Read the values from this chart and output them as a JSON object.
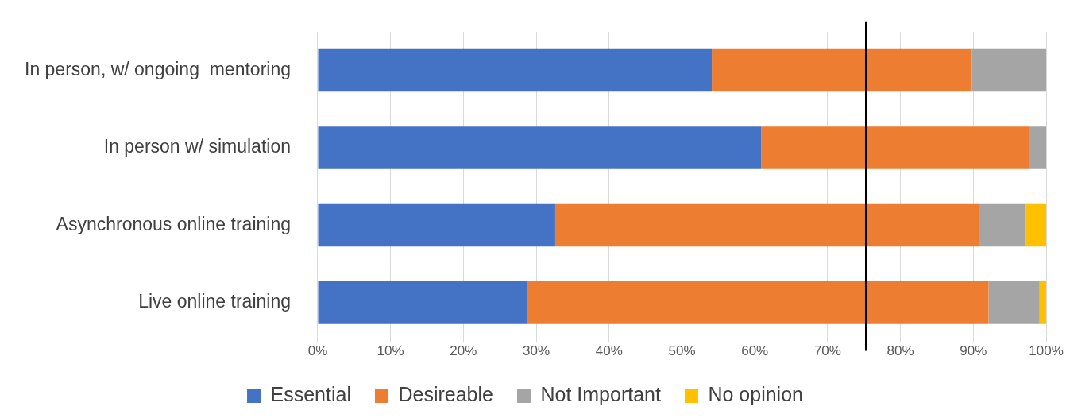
{
  "chart_data": {
    "type": "bar",
    "orientation": "horizontal",
    "stacked": true,
    "categories": [
      "In person, w/ ongoing  mentoring",
      "In person w/ simulation",
      "Asynchronous online training",
      "Live online training"
    ],
    "series": [
      {
        "name": "Essential",
        "color": "#4472c4",
        "values": [
          54.1,
          60.9,
          32.6,
          28.8
        ]
      },
      {
        "name": "Desireable",
        "color": "#ed7d31",
        "values": [
          35.7,
          36.9,
          58.2,
          63.3
        ]
      },
      {
        "name": "Not Important",
        "color": "#a5a5a5",
        "values": [
          10.2,
          2.2,
          6.3,
          7.0
        ]
      },
      {
        "name": "No opinion",
        "color": "#ffc000",
        "values": [
          0,
          0,
          2.9,
          0.9
        ]
      }
    ],
    "xlim": [
      0,
      100
    ],
    "xticks": [
      {
        "value": 0,
        "label": "0%"
      },
      {
        "value": 10,
        "label": "10%"
      },
      {
        "value": 20,
        "label": "20%"
      },
      {
        "value": 30,
        "label": "30%"
      },
      {
        "value": 40,
        "label": "40%"
      },
      {
        "value": 50,
        "label": "50%"
      },
      {
        "value": 60,
        "label": "60%"
      },
      {
        "value": 70,
        "label": "70%"
      },
      {
        "value": 80,
        "label": "80%"
      },
      {
        "value": 90,
        "label": "90%"
      },
      {
        "value": 100,
        "label": "100%"
      }
    ],
    "ref_lines": [
      {
        "axis": "x",
        "value": 75.3,
        "color": "#000000"
      }
    ],
    "grid": "x",
    "legend": "bottom"
  }
}
